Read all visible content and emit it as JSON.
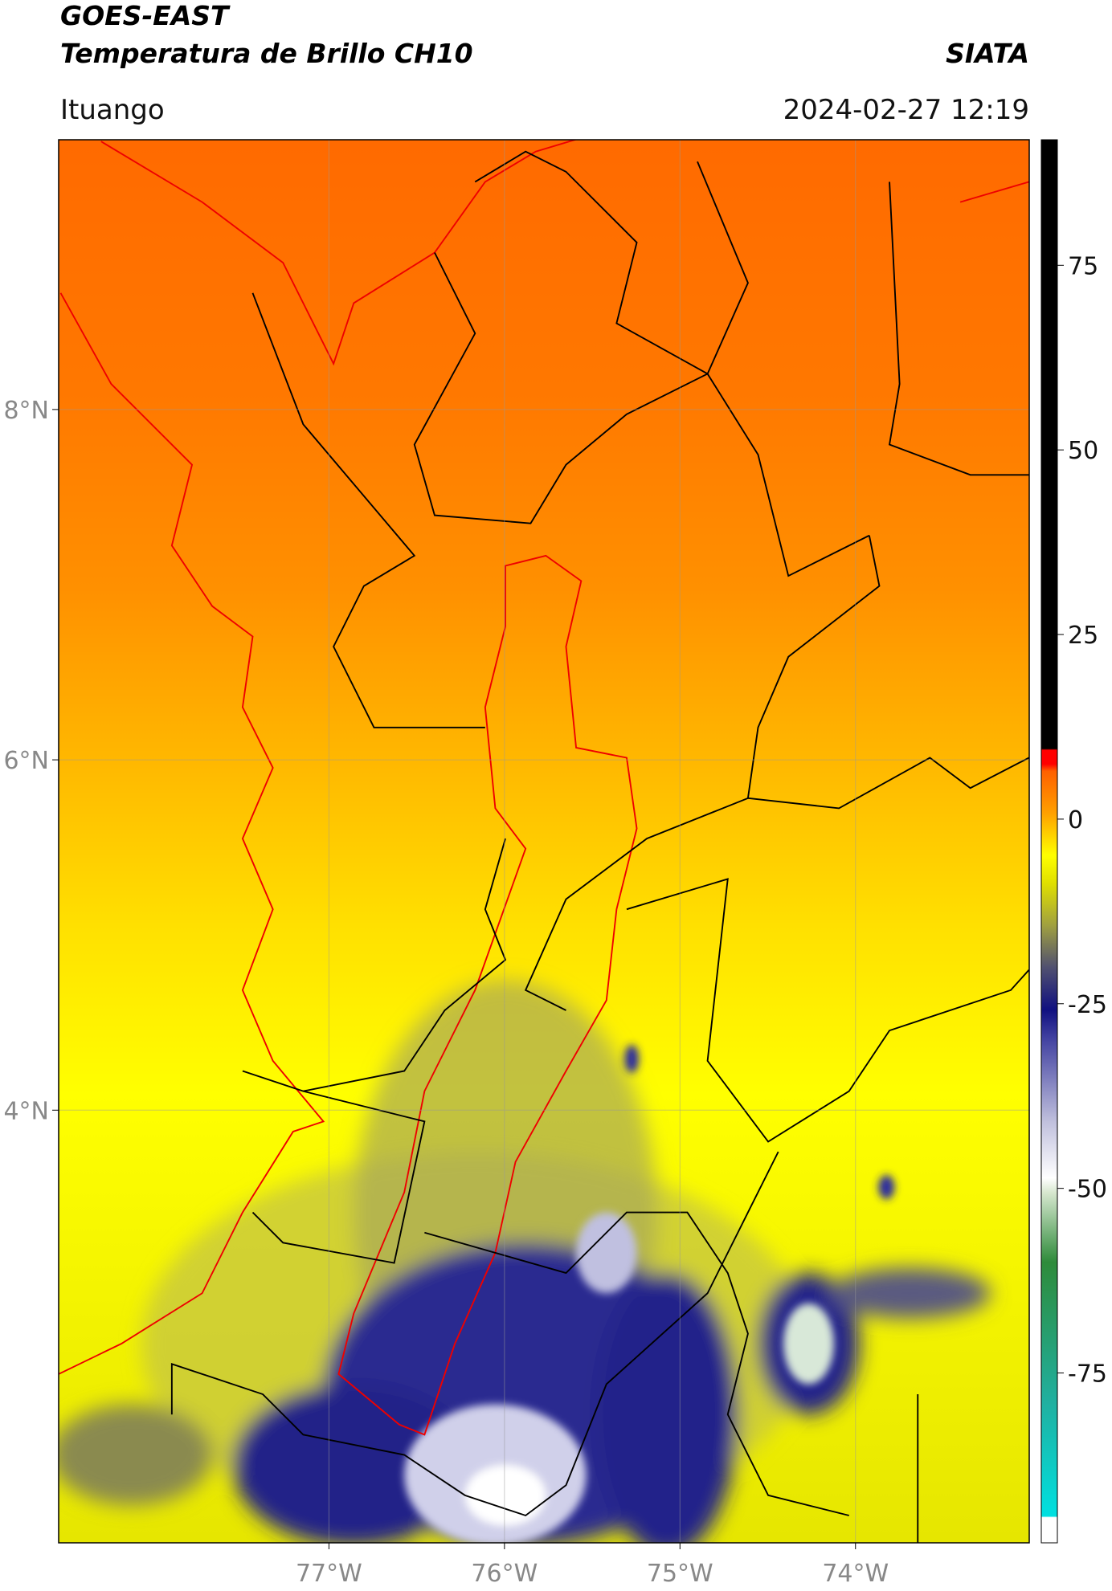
{
  "header": {
    "title": "GOES-EAST",
    "subtitle": "Temperatura de Brillo CH10",
    "source": "SIATA",
    "region": "Ituango",
    "timestamp": "2024-02-27 12:19"
  },
  "map": {
    "xlim": [
      -78.54,
      -73.01
    ],
    "ylim": [
      1.53,
      9.54
    ],
    "xticks": [
      {
        "value": -77,
        "label": "77°W"
      },
      {
        "value": -76,
        "label": "76°W"
      },
      {
        "value": -75,
        "label": "75°W"
      },
      {
        "value": -74,
        "label": "74°W"
      }
    ],
    "yticks": [
      {
        "value": 8,
        "label": "8°N"
      },
      {
        "value": 6,
        "label": "6°N"
      },
      {
        "value": 4,
        "label": "4°N"
      }
    ],
    "grid": true
  },
  "colorbar": {
    "lim": [
      -98,
      92
    ],
    "ticks": [
      75,
      50,
      25,
      0,
      -25,
      -50,
      -75
    ]
  }
}
